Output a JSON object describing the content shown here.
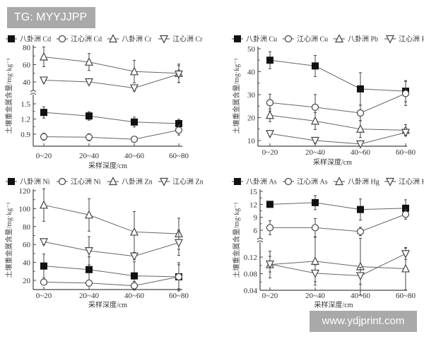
{
  "watermarks": {
    "top": "TG: MYYJJPP",
    "bottom": "www.ydjprint.com"
  },
  "chart_data": [
    {
      "type": "line",
      "panel": "top-left",
      "categories": [
        "0~20",
        "20~40",
        "40~60",
        "60~80"
      ],
      "xlabel": "采样深度/cm",
      "ylabel": "土壤重金属含量/mg·kg⁻¹",
      "yticks_upper": [
        "80",
        "60",
        "40"
      ],
      "yticks_lower": [
        "1.5",
        "1.2",
        "0.9"
      ],
      "axis_break": true,
      "legend": [
        "八卦洲 Cd",
        "江心洲 Cd",
        "八卦洲 Cr",
        "江心洲 Cr"
      ],
      "series": [
        {
          "name": "八卦洲 Cd",
          "marker": "filled-square",
          "values": [
            1.33,
            1.26,
            1.14,
            1.11
          ]
        },
        {
          "name": "江心洲 Cd",
          "marker": "open-circle",
          "values": [
            0.85,
            0.84,
            0.8,
            0.98
          ]
        },
        {
          "name": "八卦洲 Cr",
          "marker": "open-triangle-up",
          "values": [
            69,
            63,
            52,
            50
          ]
        },
        {
          "name": "江心洲 Cr",
          "marker": "open-triangle-down",
          "values": [
            42,
            40,
            33,
            49
          ]
        }
      ]
    },
    {
      "type": "line",
      "panel": "top-right",
      "categories": [
        "0~20",
        "20~40",
        "40~60",
        "60~80"
      ],
      "xlabel": "采样深度/cm",
      "ylabel": "土壤重金属含量/mg·kg⁻¹",
      "yticks": [
        "50",
        "40",
        "30",
        "20",
        "10"
      ],
      "ylim": [
        8,
        50
      ],
      "legend": [
        "八卦洲 Cu",
        "江心洲 Cu",
        "八卦洲 Pb",
        "江心洲 Pb"
      ],
      "series": [
        {
          "name": "八卦洲 Cu",
          "marker": "filled-square",
          "values": [
            45,
            42.5,
            32.5,
            31.5
          ]
        },
        {
          "name": "江心洲 Cu",
          "marker": "open-circle",
          "values": [
            26.5,
            24.5,
            22,
            30.5
          ]
        },
        {
          "name": "八卦洲 Pb",
          "marker": "open-triangle-up",
          "values": [
            21,
            18.5,
            15,
            14.5
          ]
        },
        {
          "name": "江心洲 Pb",
          "marker": "open-triangle-down",
          "values": [
            13,
            10,
            8.5,
            13.5
          ]
        }
      ]
    },
    {
      "type": "line",
      "panel": "bottom-left",
      "categories": [
        "0~20",
        "20~40",
        "40~60",
        "60~80"
      ],
      "xlabel": "采样深度/cm",
      "ylabel": "土壤重金属含量/mg·kg⁻¹",
      "yticks": [
        "120",
        "100",
        "80",
        "60",
        "40",
        "20"
      ],
      "ylim": [
        10,
        120
      ],
      "legend": [
        "八卦洲 Ni",
        "江心洲 Ni",
        "八卦洲 Zn",
        "江心洲 Zn"
      ],
      "series": [
        {
          "name": "八卦洲 Ni",
          "marker": "filled-square",
          "values": [
            36,
            32,
            25,
            24
          ]
        },
        {
          "name": "江心洲 Ni",
          "marker": "open-circle",
          "values": [
            18,
            17,
            14,
            24
          ]
        },
        {
          "name": "八卦洲 Zn",
          "marker": "open-triangle-up",
          "values": [
            104,
            93,
            74,
            72
          ]
        },
        {
          "name": "江心洲 Zn",
          "marker": "open-triangle-down",
          "values": [
            63,
            53,
            47,
            62
          ]
        }
      ]
    },
    {
      "type": "line",
      "panel": "bottom-right",
      "categories": [
        "0~20",
        "20~40",
        "40~60",
        "60~80"
      ],
      "xlabel": "采样深度/cm",
      "ylabel": "土壤重金属含量/mg·kg⁻¹",
      "yticks_upper": [
        "15",
        "12",
        "9",
        "6"
      ],
      "yticks_lower": [
        "0.12",
        "0.08",
        "0.04"
      ],
      "axis_break": true,
      "legend": [
        "八卦洲 As",
        "江心洲 As",
        "八卦洲 Hg",
        "江心洲 Hg"
      ],
      "series": [
        {
          "name": "八卦洲 As",
          "marker": "filled-square",
          "values": [
            12.0,
            12.4,
            10.8,
            11.1
          ]
        },
        {
          "name": "江心洲 As",
          "marker": "open-circle",
          "values": [
            6.6,
            6.6,
            5.7,
            9.7
          ]
        },
        {
          "name": "八卦洲 Hg",
          "marker": "open-triangle-up",
          "values": [
            0.102,
            0.11,
            0.097,
            0.092
          ]
        },
        {
          "name": "江心洲 Hg",
          "marker": "open-triangle-down",
          "values": [
            0.103,
            0.081,
            0.075,
            0.128
          ]
        }
      ]
    }
  ]
}
